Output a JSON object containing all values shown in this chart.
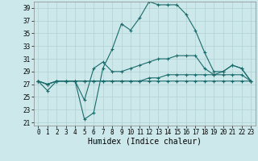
{
  "xlabel": "Humidex (Indice chaleur)",
  "background_color": "#cce8ea",
  "grid_color": "#b0d0d2",
  "line_color": "#1a6b6b",
  "xlim": [
    -0.5,
    23.5
  ],
  "ylim": [
    20.5,
    40.0
  ],
  "xticks": [
    0,
    1,
    2,
    3,
    4,
    5,
    6,
    7,
    8,
    9,
    10,
    11,
    12,
    13,
    14,
    15,
    16,
    17,
    18,
    19,
    20,
    21,
    22,
    23
  ],
  "yticks": [
    21,
    23,
    25,
    27,
    29,
    31,
    33,
    35,
    37,
    39
  ],
  "line1_x": [
    0,
    1,
    2,
    3,
    4,
    5,
    6,
    7,
    8,
    9,
    10,
    11,
    12,
    13,
    14,
    15,
    16,
    17,
    18,
    19,
    20,
    21,
    22,
    23
  ],
  "line1_y": [
    27.5,
    26.0,
    27.5,
    27.5,
    27.5,
    21.5,
    22.5,
    29.5,
    32.5,
    36.5,
    35.5,
    37.5,
    40.0,
    39.5,
    39.5,
    39.5,
    38.0,
    35.5,
    32.0,
    29.0,
    29.0,
    30.0,
    29.5,
    27.5
  ],
  "line2_x": [
    0,
    1,
    2,
    3,
    4,
    5,
    6,
    7,
    8,
    9,
    10,
    11,
    12,
    13,
    14,
    15,
    16,
    17,
    18,
    19,
    20,
    21,
    22,
    23
  ],
  "line2_y": [
    27.5,
    27.0,
    27.5,
    27.5,
    27.5,
    24.5,
    29.5,
    30.5,
    29.0,
    29.0,
    29.5,
    30.0,
    30.5,
    31.0,
    31.0,
    31.5,
    31.5,
    31.5,
    29.5,
    28.5,
    29.0,
    30.0,
    29.5,
    27.5
  ],
  "line3_x": [
    0,
    1,
    2,
    3,
    4,
    5,
    6,
    7,
    8,
    9,
    10,
    11,
    12,
    13,
    14,
    15,
    16,
    17,
    18,
    19,
    20,
    21,
    22,
    23
  ],
  "line3_y": [
    27.5,
    27.0,
    27.5,
    27.5,
    27.5,
    27.5,
    27.5,
    27.5,
    27.5,
    27.5,
    27.5,
    27.5,
    28.0,
    28.0,
    28.5,
    28.5,
    28.5,
    28.5,
    28.5,
    28.5,
    28.5,
    28.5,
    28.5,
    27.5
  ],
  "line4_x": [
    0,
    1,
    2,
    3,
    4,
    5,
    6,
    7,
    8,
    9,
    10,
    11,
    12,
    13,
    14,
    15,
    16,
    17,
    18,
    19,
    20,
    21,
    22,
    23
  ],
  "line4_y": [
    27.5,
    27.0,
    27.5,
    27.5,
    27.5,
    27.5,
    27.5,
    27.5,
    27.5,
    27.5,
    27.5,
    27.5,
    27.5,
    27.5,
    27.5,
    27.5,
    27.5,
    27.5,
    27.5,
    27.5,
    27.5,
    27.5,
    27.5,
    27.5
  ],
  "tick_fontsize": 5.5,
  "xlabel_fontsize": 7,
  "marker_size": 2.5,
  "linewidth": 0.8
}
